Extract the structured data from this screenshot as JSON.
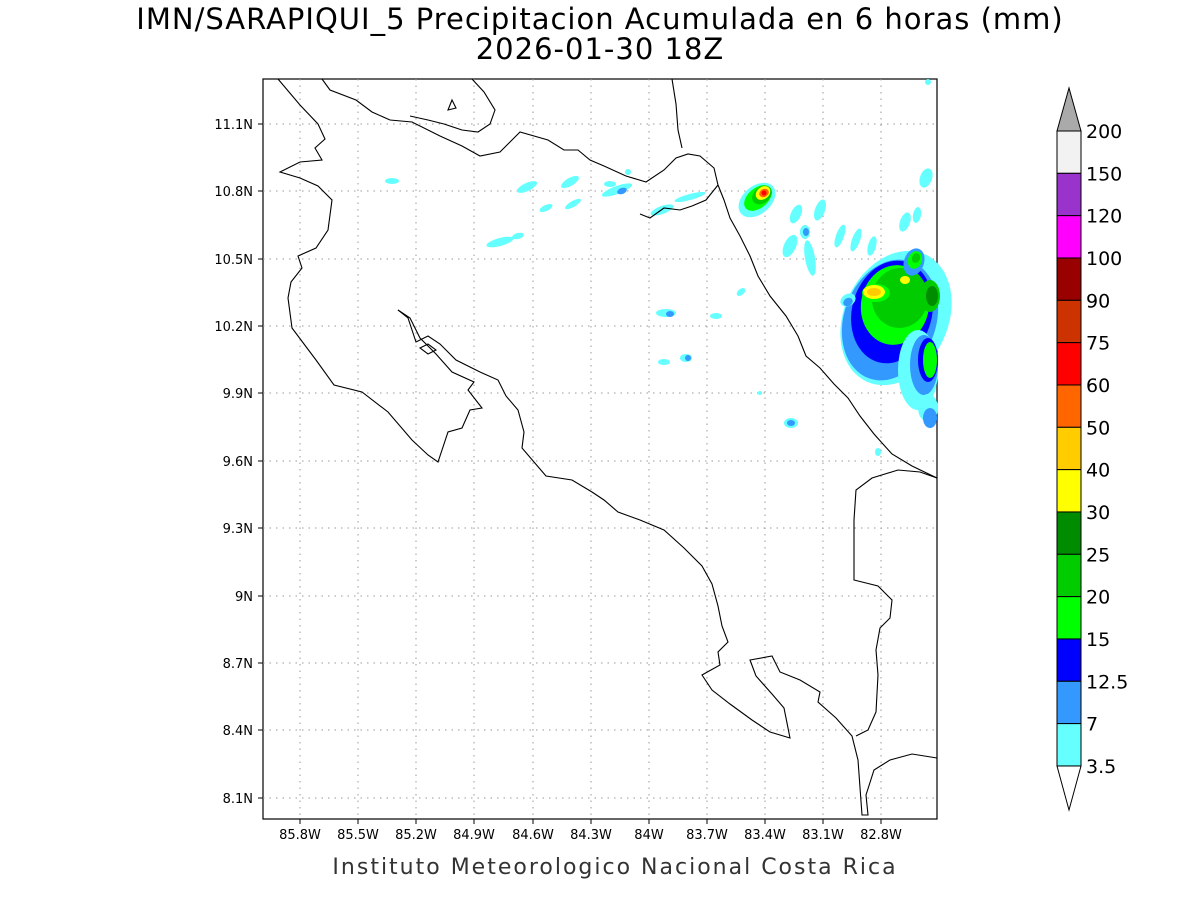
{
  "title_line1": "IMN/SARAPIQUI_5 Precipitacion Acumulada en 6 horas (mm)",
  "title_line2": "2026-01-30 18Z",
  "footer": "Instituto Meteorologico Nacional Costa Rica",
  "map": {
    "lon_range": [
      -86.0,
      -82.55
    ],
    "lat_range": [
      8.0,
      11.3
    ],
    "lon_ticks": [
      "85.8W",
      "85.5W",
      "85.2W",
      "84.9W",
      "84.6W",
      "84.3W",
      "84W",
      "83.7W",
      "83.4W",
      "83.1W",
      "82.8W"
    ],
    "lat_ticks": [
      "11.1N",
      "10.8N",
      "10.5N",
      "10.2N",
      "9.9N",
      "9.6N",
      "9.3N",
      "9N",
      "8.7N",
      "8.4N",
      "8.1N"
    ],
    "grid": "dotted"
  },
  "colorbar": {
    "levels": [
      "200",
      "150",
      "120",
      "100",
      "90",
      "75",
      "60",
      "50",
      "40",
      "30",
      "25",
      "20",
      "15",
      "12.5",
      "7",
      "3.5"
    ],
    "colors": [
      "#f2f2f2",
      "#9933cc",
      "#ff00ff",
      "#990000",
      "#cc3300",
      "#ff0000",
      "#ff6600",
      "#ffcc00",
      "#ffff00",
      "#008c00",
      "#00cc00",
      "#00ff00",
      "#0000ff",
      "#3399ff",
      "#66ffff"
    ],
    "over_color": "#aaaaaa",
    "under_color": "#ffffff"
  }
}
